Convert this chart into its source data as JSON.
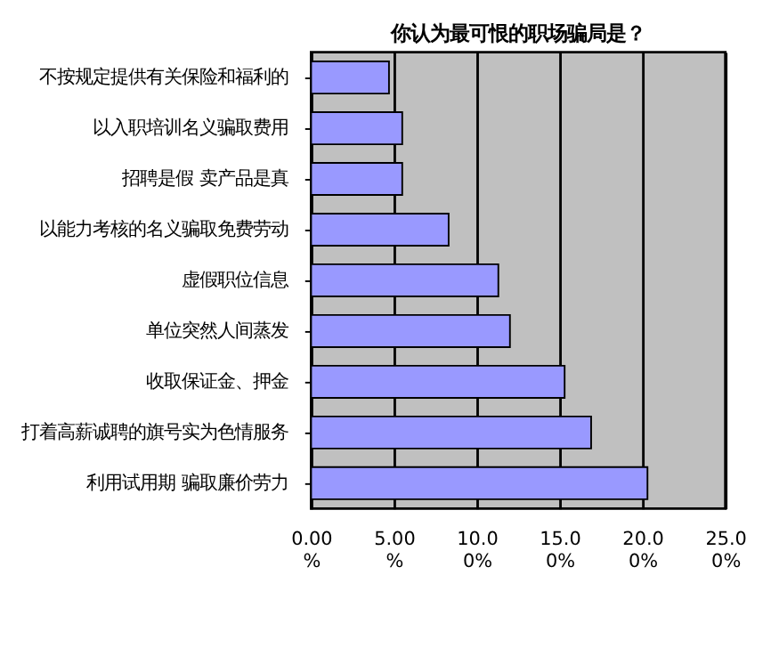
{
  "chart_data": {
    "type": "bar",
    "orientation": "horizontal",
    "title": "你认为最可恨的职场骗局是？",
    "categories": [
      "不按规定提供有关保险和福利的",
      "以入职培训名义骗取费用",
      "招聘是假  卖产品是真",
      "以能力考核的名义骗取免费劳动",
      "虚假职位信息",
      "单位突然人间蒸发",
      "收取保证金、押金",
      "打着高薪诚聘的旗号实为色情服务",
      "利用试用期 骗取廉价劳力"
    ],
    "values": [
      4.7,
      5.5,
      5.5,
      8.3,
      11.3,
      12.0,
      15.3,
      16.9,
      20.3
    ],
    "color": "#9999ff",
    "xlim": [
      0,
      25
    ],
    "xticks": [
      {
        "value": 0,
        "label": "0.00%"
      },
      {
        "value": 5,
        "label": "5.00%"
      },
      {
        "value": 10,
        "label": "10.00%"
      },
      {
        "value": 15,
        "label": "15.00%"
      },
      {
        "value": 20,
        "label": "20.00%"
      },
      {
        "value": 25,
        "label": "25.00%"
      }
    ],
    "grid": "x"
  }
}
